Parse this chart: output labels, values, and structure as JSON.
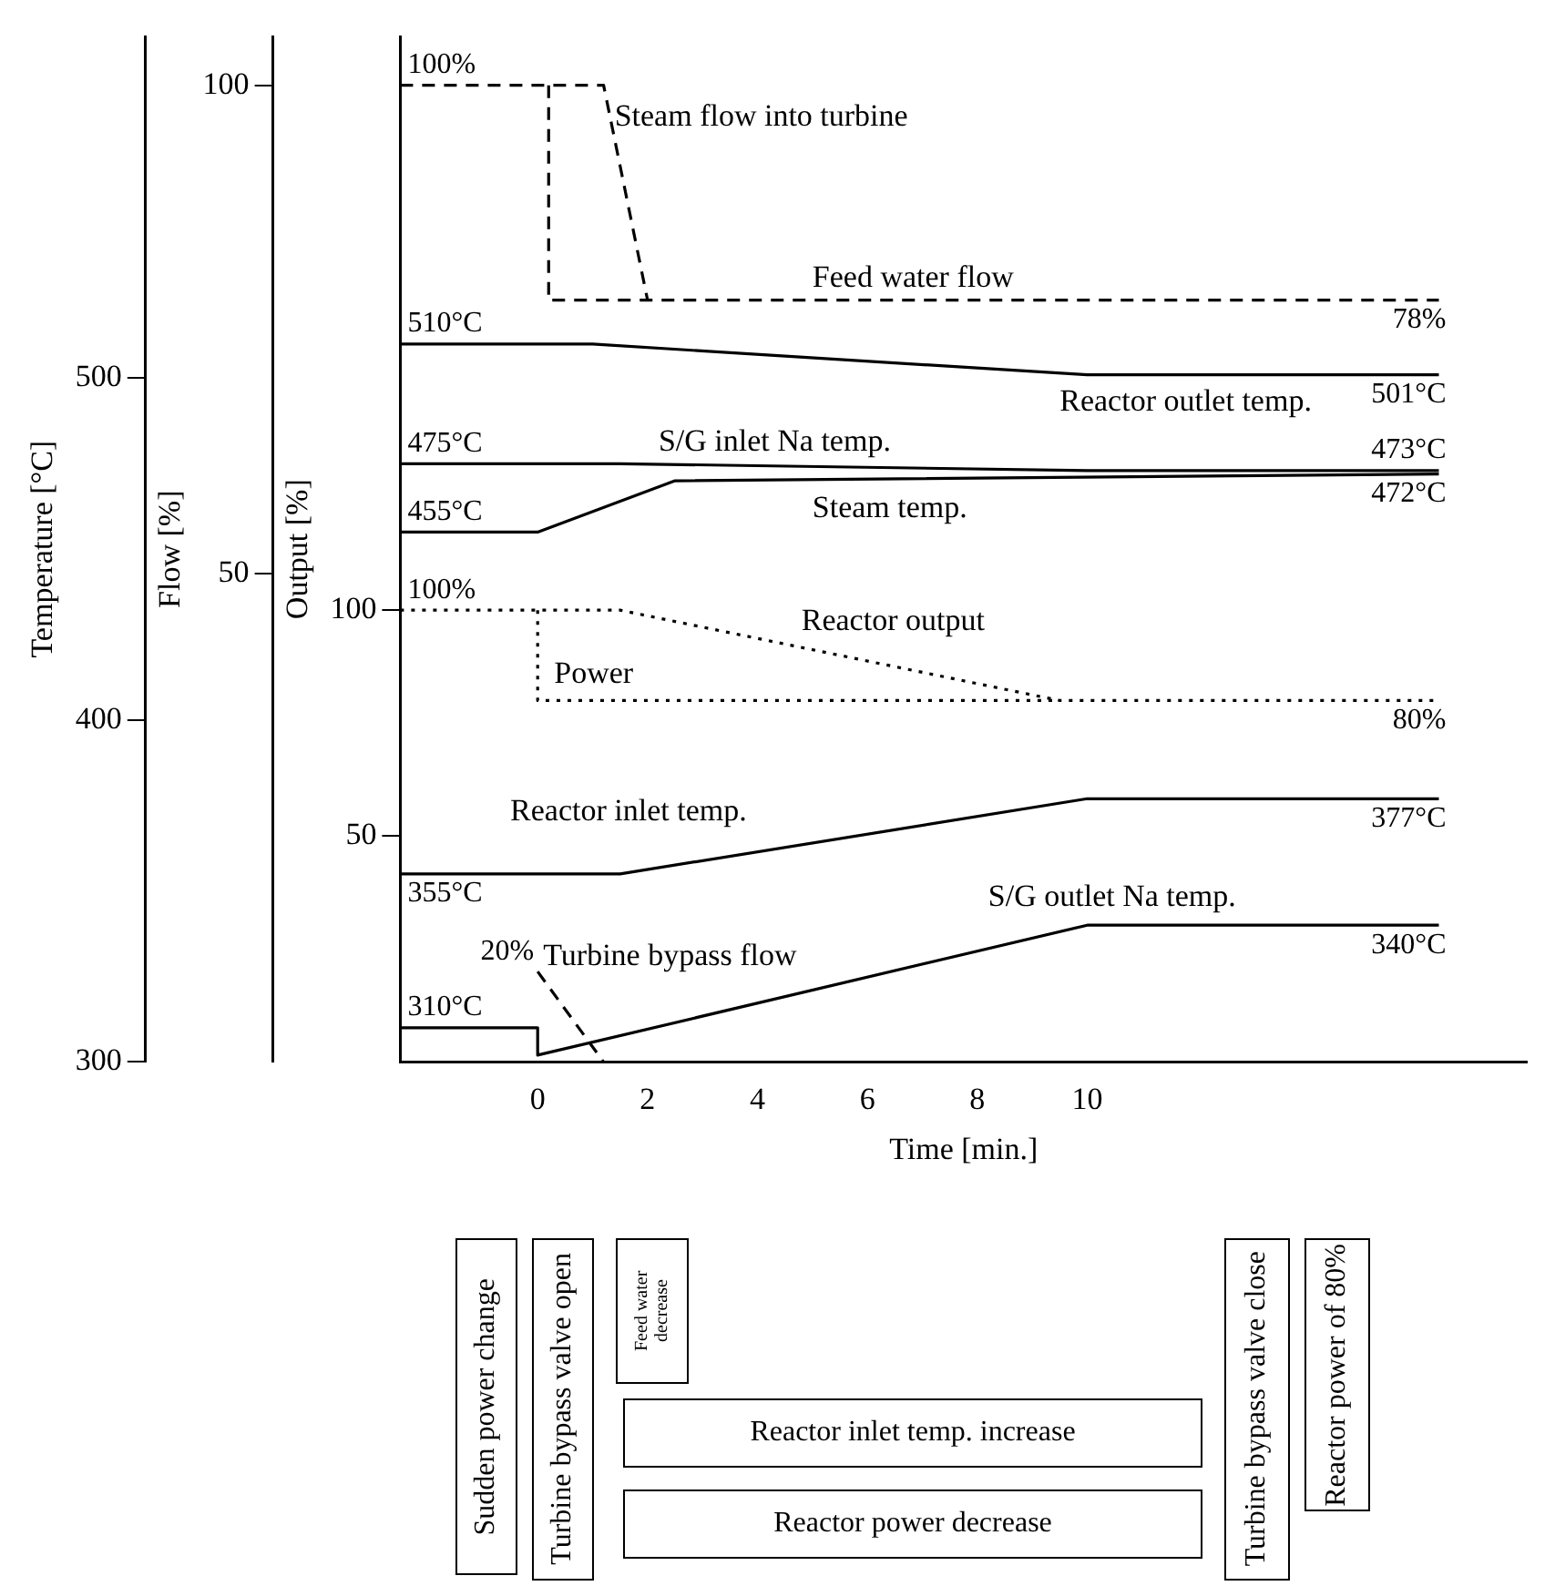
{
  "chart_data": {
    "type": "line",
    "xlabel": "Time [min.]",
    "ylabel": "Output [%]",
    "y2label": "Flow [%]",
    "y3label": "Temperature [°C]",
    "xlim": [
      -2.5,
      18
    ],
    "xticks": [
      0,
      2,
      4,
      6,
      8,
      10
    ],
    "ylim": [
      0,
      227
    ],
    "yticks": [
      50,
      100
    ],
    "y2lim": [
      0,
      105
    ],
    "y2ticks": [
      50,
      100
    ],
    "y3lim": [
      300,
      600
    ],
    "y3ticks": [
      300,
      400,
      500
    ],
    "grid": false,
    "legend": false,
    "marker": "none",
    "series": [
      {
        "name": "Steam flow into turbine",
        "color": "#000000",
        "axis": "y2",
        "line_style": "dashed",
        "x": [
          -2.5,
          1.2,
          2
        ],
        "values": [
          100,
          100,
          78
        ],
        "value_labels": [
          "100%",
          null,
          null
        ]
      },
      {
        "name": "Feed water flow",
        "color": "#000000",
        "axis": "y2",
        "line_style": "dashed",
        "x": [
          0.2,
          0.2,
          16.4
        ],
        "values": [
          100,
          78,
          78
        ],
        "value_labels": [
          null,
          null,
          "78%"
        ]
      },
      {
        "name": "Reactor outlet temp.",
        "color": "#000000",
        "axis": "y3",
        "line_style": "solid",
        "x": [
          -2.5,
          1,
          10,
          16.4
        ],
        "values": [
          510,
          510,
          501,
          501
        ],
        "value_labels": [
          "510°C",
          null,
          null,
          "501°C"
        ]
      },
      {
        "name": "S/G inlet Na temp.",
        "color": "#000000",
        "axis": "y3",
        "line_style": "solid",
        "x": [
          -2.5,
          1.5,
          10,
          16.4
        ],
        "values": [
          475,
          475,
          473,
          473
        ],
        "value_labels": [
          "475°C",
          null,
          null,
          "473°C"
        ]
      },
      {
        "name": "Steam temp.",
        "color": "#000000",
        "axis": "y3",
        "line_style": "solid",
        "x": [
          -2.5,
          0,
          2.5,
          16.4
        ],
        "values": [
          455,
          455,
          470,
          472
        ],
        "value_labels": [
          "455°C",
          null,
          null,
          "472°C"
        ]
      },
      {
        "name": "Reactor output",
        "color": "#000000",
        "axis": "y",
        "line_style": "dotted",
        "x": [
          -2.5,
          1.5,
          9.5,
          16.4
        ],
        "values": [
          100,
          100,
          80,
          80
        ],
        "value_labels": [
          "100%",
          null,
          null,
          "80%"
        ]
      },
      {
        "name": "Power",
        "color": "#000000",
        "axis": "y",
        "line_style": "dotted",
        "x": [
          0,
          0,
          9.5
        ],
        "values": [
          100,
          80,
          80
        ],
        "value_labels": [
          null,
          null,
          null
        ]
      },
      {
        "name": "Reactor inlet temp.",
        "color": "#000000",
        "axis": "y3",
        "line_style": "solid",
        "x": [
          -2.5,
          1.5,
          10,
          16.4
        ],
        "values": [
          355,
          355,
          377,
          377
        ],
        "value_labels": [
          "355°C",
          null,
          null,
          "377°C"
        ]
      },
      {
        "name": "Turbine bypass flow",
        "color": "#000000",
        "axis": "y",
        "line_style": "dashed",
        "x": [
          0,
          1.2
        ],
        "values": [
          20,
          0
        ],
        "value_labels": [
          "20%",
          null
        ]
      },
      {
        "name": "S/G outlet Na temp.",
        "color": "#000000",
        "axis": "y3",
        "line_style": "solid",
        "x": [
          -2.5,
          0,
          0,
          10,
          16.4
        ],
        "values": [
          310,
          310,
          302,
          340,
          340
        ],
        "value_labels": [
          "310°C",
          null,
          null,
          null,
          "340°C"
        ]
      }
    ],
    "annotations": [
      "Sudden power change",
      "Turbine bypass valve open",
      "Feed water decrease",
      "Reactor inlet temp. increase",
      "Reactor power decrease",
      "Turbine bypass valve close",
      "Reactor power of 80%"
    ]
  }
}
